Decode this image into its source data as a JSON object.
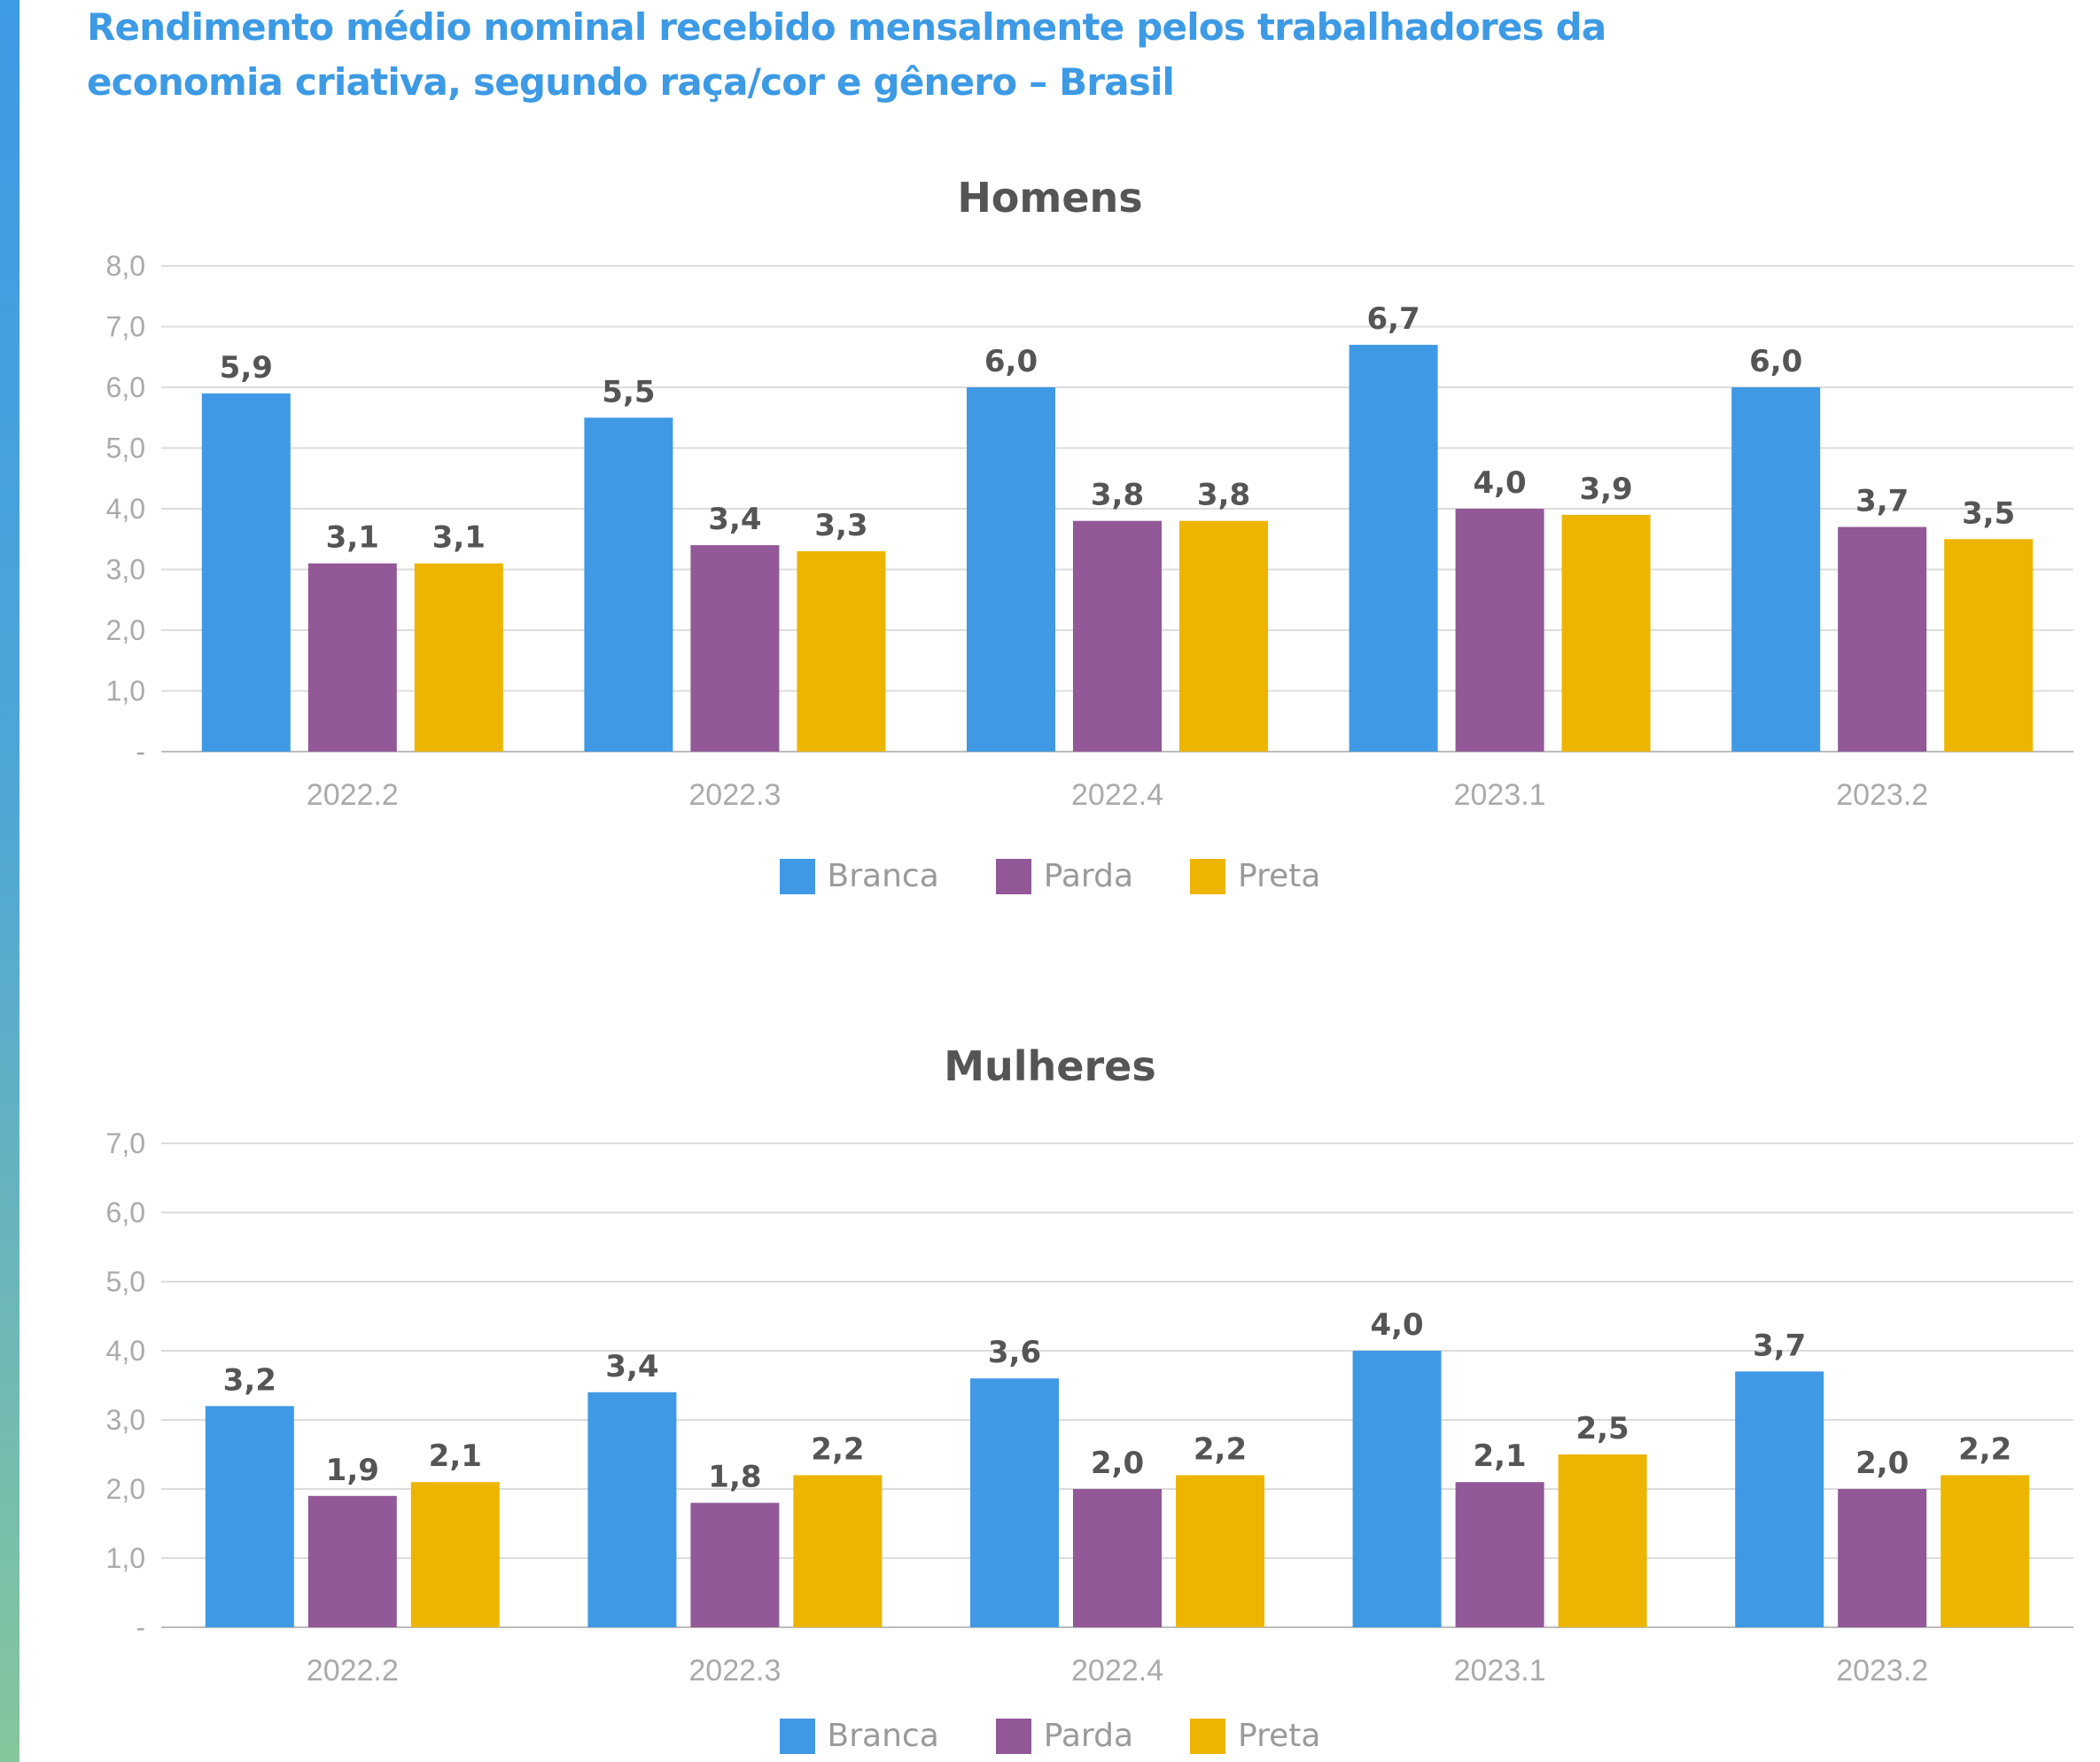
{
  "title": "Rendimento médio nominal recebido mensalmente pelos trabalhadores da economia criativa, segundo raça/cor e gênero – Brasil",
  "colors": {
    "Branca": "#3f99e4",
    "Parda": "#925898",
    "Preta": "#edb500",
    "accent": "#3d9ae4"
  },
  "chart_data": [
    {
      "type": "bar",
      "title": "Homens",
      "categories": [
        "2022.2",
        "2022.3",
        "2022.4",
        "2023.1",
        "2023.2"
      ],
      "series": [
        {
          "name": "Branca",
          "values": [
            5.9,
            5.5,
            6.0,
            6.7,
            6.0
          ]
        },
        {
          "name": "Parda",
          "values": [
            3.1,
            3.4,
            3.8,
            4.0,
            3.7
          ]
        },
        {
          "name": "Preta",
          "values": [
            3.1,
            3.3,
            3.8,
            3.9,
            3.5
          ]
        }
      ],
      "data_labels": [
        [
          "5,9",
          "5,5",
          "6,0",
          "6,7",
          "6,0"
        ],
        [
          "3,1",
          "3,4",
          "3,8",
          "4,0",
          "3,7"
        ],
        [
          "3,1",
          "3,3",
          "3,8",
          "3,9",
          "3,5"
        ]
      ],
      "yticks": [
        "-",
        "1,0",
        "2,0",
        "3,0",
        "4,0",
        "5,0",
        "6,0",
        "7,0",
        "8,0"
      ],
      "ylim": [
        0,
        8
      ],
      "grid": true,
      "legend_position": "bottom"
    },
    {
      "type": "bar",
      "title": "Mulheres",
      "categories": [
        "2022.2",
        "2022.3",
        "2022.4",
        "2023.1",
        "2023.2"
      ],
      "series": [
        {
          "name": "Branca",
          "values": [
            3.2,
            3.4,
            3.6,
            4.0,
            3.7
          ]
        },
        {
          "name": "Parda",
          "values": [
            1.9,
            1.8,
            2.0,
            2.1,
            2.0
          ]
        },
        {
          "name": "Preta",
          "values": [
            2.1,
            2.2,
            2.2,
            2.5,
            2.2
          ]
        }
      ],
      "data_labels": [
        [
          "3,2",
          "3,4",
          "3,6",
          "4,0",
          "3,7"
        ],
        [
          "1,9",
          "1,8",
          "2,0",
          "2,1",
          "2,0"
        ],
        [
          "2,1",
          "2,2",
          "2,2",
          "2,5",
          "2,2"
        ]
      ],
      "yticks": [
        "-",
        "1,0",
        "2,0",
        "3,0",
        "4,0",
        "5,0",
        "6,0",
        "7,0"
      ],
      "ylim": [
        0,
        7
      ],
      "grid": true,
      "legend_position": "bottom"
    }
  ]
}
